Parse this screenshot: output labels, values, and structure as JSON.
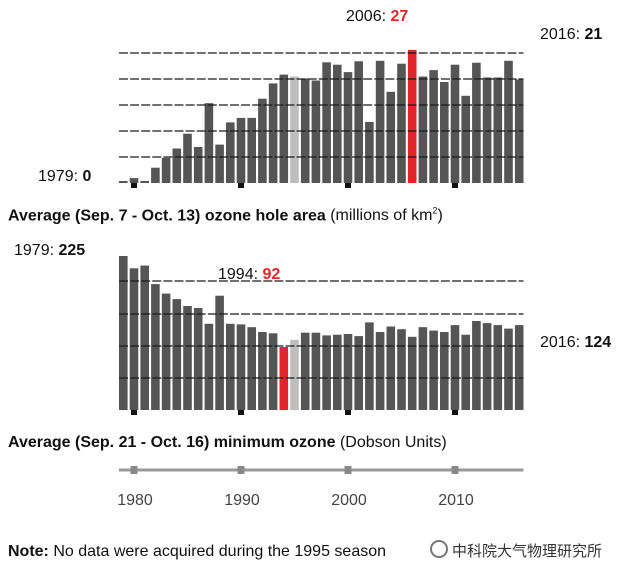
{
  "chart_data": [
    {
      "type": "bar",
      "title": "Average (Sep. 7 - Oct. 13) ozone hole area",
      "unit": "(millions of km",
      "unit_sup": "2",
      "unit_close": ")",
      "x": [
        1979,
        1980,
        1981,
        1982,
        1983,
        1984,
        1985,
        1986,
        1987,
        1988,
        1989,
        1990,
        1991,
        1992,
        1993,
        1994,
        1995,
        1996,
        1997,
        1998,
        1999,
        2000,
        2001,
        2002,
        2003,
        2004,
        2005,
        2006,
        2007,
        2008,
        2009,
        2010,
        2011,
        2012,
        2013,
        2014,
        2015,
        2016
      ],
      "values": [
        0.1,
        1.0,
        0.3,
        3.1,
        5.1,
        7.0,
        10.0,
        7.3,
        16.2,
        7.8,
        12.3,
        13.2,
        13.2,
        17.1,
        20.2,
        22.0,
        null,
        21.2,
        20.8,
        24.5,
        24.0,
        22.5,
        24.7,
        12.4,
        24.8,
        18.5,
        24.2,
        27.0,
        21.6,
        22.9,
        20.5,
        24.0,
        17.7,
        24.4,
        21.4,
        21.4,
        24.8,
        21.0
      ],
      "highlight": {
        "2006": "red",
        "1995": "gray"
      },
      "ylim": [
        0,
        28
      ],
      "labels": {
        "first_year": "1979:",
        "first_value": "0",
        "peak_year": "2006:",
        "peak_value": "27",
        "last_year": "2016:",
        "last_value": "21"
      }
    },
    {
      "type": "bar",
      "title": "Average (Sep. 21 - Oct. 16) minimum ozone",
      "unit": "(Dobson Units)",
      "x": [
        1979,
        1980,
        1981,
        1982,
        1983,
        1984,
        1985,
        1986,
        1987,
        1988,
        1989,
        1990,
        1991,
        1992,
        1993,
        1994,
        1995,
        1996,
        1997,
        1998,
        1999,
        2000,
        2001,
        2002,
        2003,
        2004,
        2005,
        2006,
        2007,
        2008,
        2009,
        2010,
        2011,
        2012,
        2013,
        2014,
        2015,
        2016
      ],
      "values": [
        225,
        207,
        211,
        184,
        170,
        162,
        152,
        149,
        126,
        167,
        126,
        125,
        121,
        114,
        112,
        92,
        null,
        113,
        113,
        109,
        110,
        111,
        108,
        128,
        114,
        122,
        118,
        107,
        121,
        116,
        114,
        124,
        110,
        130,
        127,
        124,
        119,
        124
      ],
      "highlight": {
        "1994": "red",
        "1995": "gray"
      },
      "ylim": [
        0,
        250
      ],
      "labels": {
        "first_year": "1979:",
        "first_value": "225",
        "low_year": "1994:",
        "low_value": "92",
        "last_year": "2016:",
        "last_value": "124"
      }
    }
  ],
  "x_axis": {
    "ticks": [
      "1980",
      "1990",
      "2000",
      "2010"
    ]
  },
  "note": {
    "label": "Note:",
    "text": "No data were acquired during the 1995 season"
  },
  "watermark": "中科院大气物理研究所",
  "colors": {
    "bar": "#555555",
    "highlight": "#e3242b",
    "missing": "#bdbdbd",
    "gridline": "#1a1a1a"
  }
}
